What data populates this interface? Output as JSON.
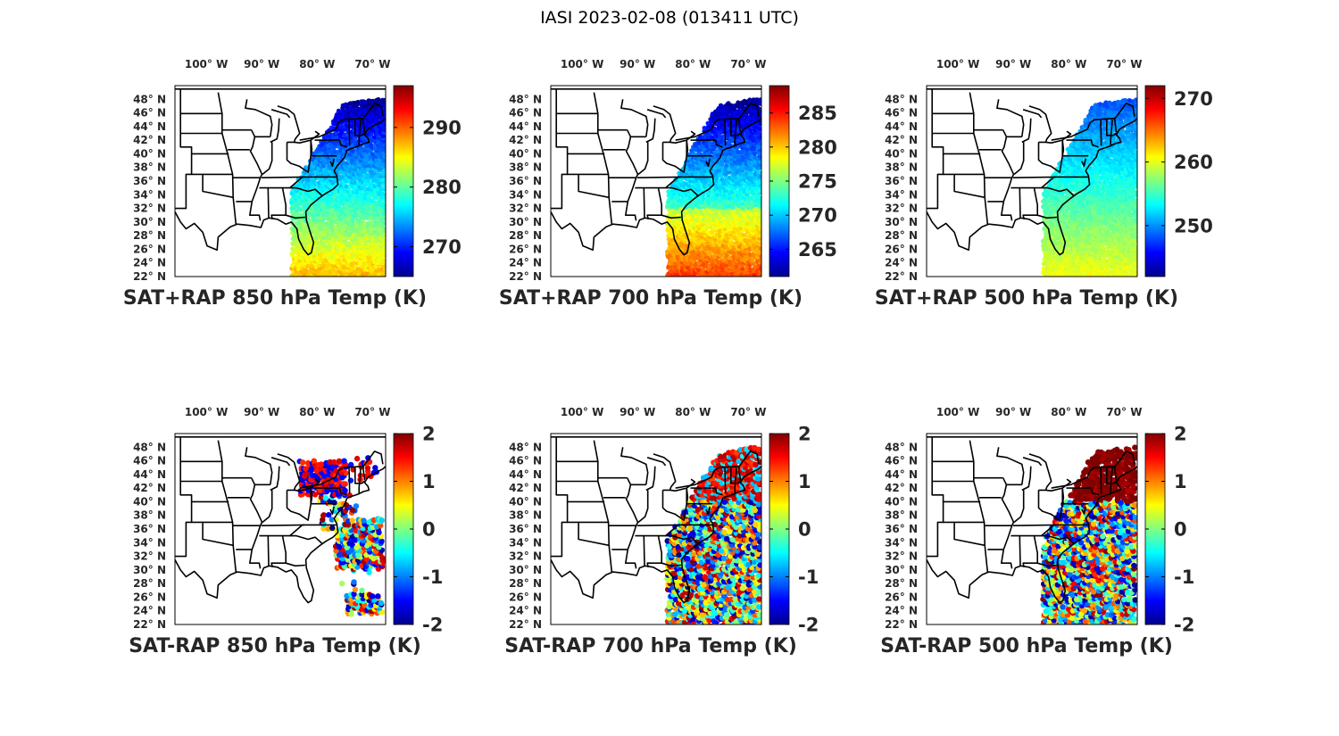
{
  "figure": {
    "title": "IASI 2023-02-08 (013411 UTC)"
  },
  "chart_data": [
    {
      "type": "map",
      "id": "p850sum",
      "title": "SAT+RAP 850 hPa Temp (K)",
      "colormap": "jet",
      "clim": [
        265,
        297
      ],
      "colorbar_ticks": [
        270,
        280,
        290
      ],
      "swath": "east",
      "variable": "temperature"
    },
    {
      "type": "map",
      "id": "p700sum",
      "title": "SAT+RAP 700 hPa Temp (K)",
      "colormap": "jet",
      "clim": [
        261,
        289
      ],
      "colorbar_ticks": [
        265,
        270,
        275,
        280,
        285
      ],
      "swath": "east",
      "variable": "temperature"
    },
    {
      "type": "map",
      "id": "p500sum",
      "title": "SAT+RAP 500 hPa Temp (K)",
      "colormap": "jet",
      "clim": [
        242,
        272
      ],
      "colorbar_ticks": [
        250,
        260,
        270
      ],
      "swath": "east",
      "variable": "temperature"
    },
    {
      "type": "map",
      "id": "p850diff",
      "title": "SAT-RAP 850 hPa Temp (K)",
      "colormap": "jet",
      "clim": [
        -2,
        2
      ],
      "colorbar_ticks": [
        -2,
        -1,
        0,
        1,
        2
      ],
      "swath": "sparse",
      "variable": "difference"
    },
    {
      "type": "map",
      "id": "p700diff",
      "title": "SAT-RAP 700 hPa Temp (K)",
      "colormap": "jet",
      "clim": [
        -2,
        2
      ],
      "colorbar_ticks": [
        -2,
        -1,
        0,
        1,
        2
      ],
      "swath": "east",
      "variable": "difference"
    },
    {
      "type": "map",
      "id": "p500diff",
      "title": "SAT-RAP 500 hPa Temp (K)",
      "colormap": "jet",
      "clim": [
        -2,
        2
      ],
      "colorbar_ticks": [
        -2,
        -1,
        0,
        1,
        2
      ],
      "swath": "east",
      "variable": "difference"
    }
  ],
  "axes": {
    "lon_ticks": [
      "100° W",
      "90° W",
      "80° W",
      "70° W"
    ],
    "lon_values": [
      -100,
      -90,
      -80,
      -70
    ],
    "lat_ticks": [
      "48° N",
      "46° N",
      "44° N",
      "42° N",
      "40° N",
      "38° N",
      "36° N",
      "34° N",
      "32° N",
      "30° N",
      "28° N",
      "26° N",
      "24° N",
      "22° N"
    ],
    "lat_values": [
      48,
      46,
      44,
      42,
      40,
      38,
      36,
      34,
      32,
      30,
      28,
      26,
      24,
      22
    ],
    "lon_range": [
      -105,
      -67
    ],
    "lat_range": [
      22,
      50
    ]
  }
}
